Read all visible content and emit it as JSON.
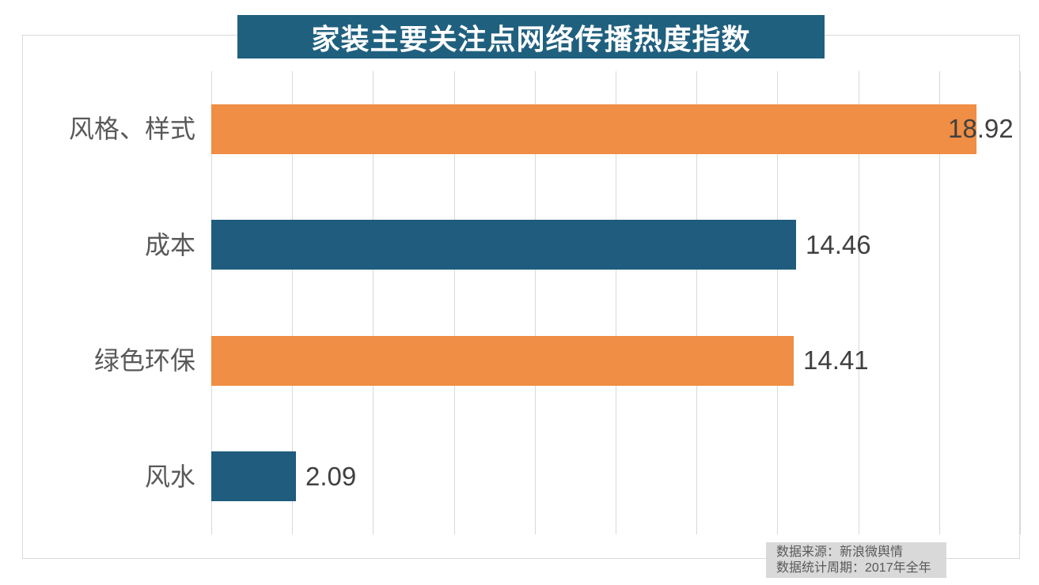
{
  "chart_title": "家装主要关注点网络传播热度指数",
  "chart_data": {
    "type": "bar",
    "orientation": "horizontal",
    "title": "家装主要关注点网络传播热度指数",
    "categories": [
      "风格、样式",
      "成本",
      "绿色环保",
      "风水"
    ],
    "values": [
      18.92,
      14.46,
      14.41,
      2.09
    ],
    "value_labels": [
      "18.92",
      "14.46",
      "14.41",
      "2.09"
    ],
    "bar_colors": [
      "#EF8E44",
      "#1F5C7D",
      "#EF8E44",
      "#1F5C7D"
    ],
    "xlim": [
      0,
      20
    ],
    "grid_interval": 2,
    "grid": true,
    "legend": "none",
    "xlabel": "",
    "ylabel": ""
  },
  "footer": {
    "source_line": "数据来源：新浪微舆情",
    "period_line": "数据统计周期：2017年全年"
  },
  "colors": {
    "title_bg": "#20607F",
    "title_text": "#FFFFFF",
    "accent_orange": "#EF8E44",
    "accent_teal": "#1F5C7D",
    "gridline": "#D9D9D9",
    "category_text": "#595959",
    "value_text": "#404040",
    "footer_bg": "#D9D9D9",
    "footer_text": "#595959"
  }
}
